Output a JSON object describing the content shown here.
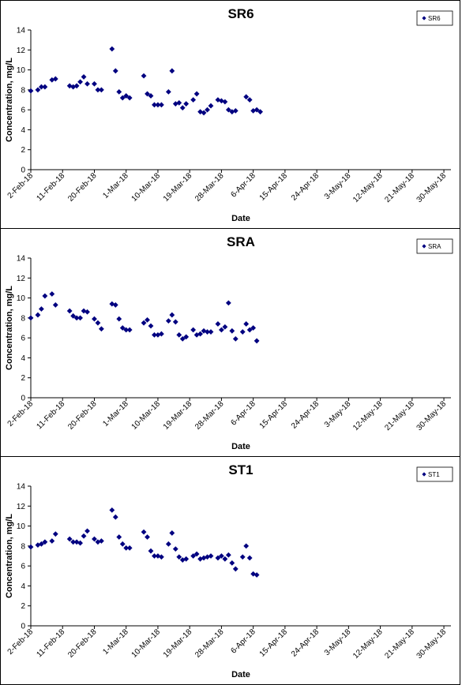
{
  "chart_data": [
    {
      "type": "scatter",
      "title": "SR6",
      "xlabel": "Date",
      "ylabel": "Concentration, mg/L",
      "ylim": [
        0,
        14
      ],
      "yticks": [
        0,
        2,
        4,
        6,
        8,
        10,
        12,
        14
      ],
      "xlim": [
        "2018-02-02",
        "2018-06-01"
      ],
      "xtick_labels": [
        "2-Feb-18",
        "11-Feb-18",
        "20-Feb-18",
        "1-Mar-18",
        "10-Mar-18",
        "19-Mar-18",
        "28-Mar-18",
        "6-Apr-18",
        "15-Apr-18",
        "24-Apr-18",
        "3-May-18",
        "12-May-18",
        "21-May-18",
        "30-May-18"
      ],
      "grid": false,
      "legend": "top-right",
      "color": "#000080",
      "series": [
        {
          "name": "SR6",
          "points": [
            [
              "2018-02-02",
              7.9
            ],
            [
              "2018-02-04",
              8.0
            ],
            [
              "2018-02-05",
              8.3
            ],
            [
              "2018-02-06",
              8.3
            ],
            [
              "2018-02-08",
              9.0
            ],
            [
              "2018-02-09",
              9.1
            ],
            [
              "2018-02-13",
              8.4
            ],
            [
              "2018-02-14",
              8.3
            ],
            [
              "2018-02-15",
              8.4
            ],
            [
              "2018-02-16",
              8.8
            ],
            [
              "2018-02-17",
              9.3
            ],
            [
              "2018-02-18",
              8.6
            ],
            [
              "2018-02-20",
              8.6
            ],
            [
              "2018-02-21",
              8.0
            ],
            [
              "2018-02-22",
              8.0
            ],
            [
              "2018-02-25",
              12.1
            ],
            [
              "2018-02-26",
              9.9
            ],
            [
              "2018-02-27",
              7.8
            ],
            [
              "2018-02-28",
              7.2
            ],
            [
              "2018-03-01",
              7.4
            ],
            [
              "2018-03-02",
              7.2
            ],
            [
              "2018-03-06",
              9.4
            ],
            [
              "2018-03-07",
              7.6
            ],
            [
              "2018-03-08",
              7.4
            ],
            [
              "2018-03-09",
              6.5
            ],
            [
              "2018-03-10",
              6.5
            ],
            [
              "2018-03-11",
              6.5
            ],
            [
              "2018-03-13",
              7.8
            ],
            [
              "2018-03-14",
              9.9
            ],
            [
              "2018-03-15",
              6.6
            ],
            [
              "2018-03-16",
              6.7
            ],
            [
              "2018-03-17",
              6.2
            ],
            [
              "2018-03-18",
              6.6
            ],
            [
              "2018-03-20",
              7.0
            ],
            [
              "2018-03-21",
              7.6
            ],
            [
              "2018-03-22",
              5.8
            ],
            [
              "2018-03-23",
              5.7
            ],
            [
              "2018-03-24",
              6.0
            ],
            [
              "2018-03-25",
              6.4
            ],
            [
              "2018-03-27",
              7.0
            ],
            [
              "2018-03-28",
              6.9
            ],
            [
              "2018-03-29",
              6.8
            ],
            [
              "2018-03-30",
              6.0
            ],
            [
              "2018-03-31",
              5.8
            ],
            [
              "2018-04-01",
              5.9
            ],
            [
              "2018-04-04",
              7.3
            ],
            [
              "2018-04-05",
              7.0
            ],
            [
              "2018-04-06",
              5.9
            ],
            [
              "2018-04-07",
              6.0
            ],
            [
              "2018-04-08",
              5.8
            ]
          ]
        }
      ]
    },
    {
      "type": "scatter",
      "title": "SRA",
      "xlabel": "Date",
      "ylabel": "Concentration, mg/L",
      "ylim": [
        0,
        14
      ],
      "yticks": [
        0,
        2,
        4,
        6,
        8,
        10,
        12,
        14
      ],
      "xlim": [
        "2018-02-02",
        "2018-06-01"
      ],
      "xtick_labels": [
        "2-Feb-18",
        "11-Feb-18",
        "20-Feb-18",
        "1-Mar-18",
        "10-Mar-18",
        "19-Mar-18",
        "28-Mar-18",
        "6-Apr-18",
        "15-Apr-18",
        "24-Apr-18",
        "3-May-18",
        "12-May-18",
        "21-May-18",
        "30-May-18"
      ],
      "grid": false,
      "legend": "top-right",
      "color": "#000080",
      "series": [
        {
          "name": "SRA",
          "points": [
            [
              "2018-02-02",
              8.0
            ],
            [
              "2018-02-04",
              8.3
            ],
            [
              "2018-02-05",
              8.9
            ],
            [
              "2018-02-06",
              10.2
            ],
            [
              "2018-02-08",
              10.4
            ],
            [
              "2018-02-09",
              9.3
            ],
            [
              "2018-02-13",
              8.7
            ],
            [
              "2018-02-14",
              8.2
            ],
            [
              "2018-02-15",
              8.0
            ],
            [
              "2018-02-16",
              8.0
            ],
            [
              "2018-02-17",
              8.7
            ],
            [
              "2018-02-18",
              8.6
            ],
            [
              "2018-02-20",
              7.9
            ],
            [
              "2018-02-21",
              7.5
            ],
            [
              "2018-02-22",
              6.9
            ],
            [
              "2018-02-25",
              9.4
            ],
            [
              "2018-02-26",
              9.3
            ],
            [
              "2018-02-27",
              7.9
            ],
            [
              "2018-02-28",
              7.0
            ],
            [
              "2018-03-01",
              6.8
            ],
            [
              "2018-03-02",
              6.8
            ],
            [
              "2018-03-06",
              7.5
            ],
            [
              "2018-03-07",
              7.8
            ],
            [
              "2018-03-08",
              7.2
            ],
            [
              "2018-03-09",
              6.3
            ],
            [
              "2018-03-10",
              6.3
            ],
            [
              "2018-03-11",
              6.4
            ],
            [
              "2018-03-13",
              7.7
            ],
            [
              "2018-03-14",
              8.3
            ],
            [
              "2018-03-15",
              7.6
            ],
            [
              "2018-03-16",
              6.3
            ],
            [
              "2018-03-17",
              5.9
            ],
            [
              "2018-03-18",
              6.1
            ],
            [
              "2018-03-20",
              6.8
            ],
            [
              "2018-03-21",
              6.3
            ],
            [
              "2018-03-22",
              6.4
            ],
            [
              "2018-03-23",
              6.7
            ],
            [
              "2018-03-24",
              6.6
            ],
            [
              "2018-03-25",
              6.6
            ],
            [
              "2018-03-27",
              7.4
            ],
            [
              "2018-03-28",
              6.8
            ],
            [
              "2018-03-29",
              7.1
            ],
            [
              "2018-03-30",
              9.5
            ],
            [
              "2018-03-31",
              6.7
            ],
            [
              "2018-04-01",
              5.9
            ],
            [
              "2018-04-03",
              6.6
            ],
            [
              "2018-04-04",
              7.4
            ],
            [
              "2018-04-05",
              6.8
            ],
            [
              "2018-04-06",
              7.0
            ],
            [
              "2018-04-07",
              5.7
            ]
          ]
        }
      ]
    },
    {
      "type": "scatter",
      "title": "ST1",
      "xlabel": "Date",
      "ylabel": "Concentration, mg/L",
      "ylim": [
        0,
        14
      ],
      "yticks": [
        0,
        2,
        4,
        6,
        8,
        10,
        12,
        14
      ],
      "xlim": [
        "2018-02-02",
        "2018-06-01"
      ],
      "xtick_labels": [
        "2-Feb-18",
        "11-Feb-18",
        "20-Feb-18",
        "1-Mar-18",
        "10-Mar-18",
        "19-Mar-18",
        "28-Mar-18",
        "6-Apr-18",
        "15-Apr-18",
        "24-Apr-18",
        "3-May-18",
        "12-May-18",
        "21-May-18",
        "30-May-18"
      ],
      "grid": false,
      "legend": "top-right",
      "color": "#000080",
      "series": [
        {
          "name": "ST1",
          "points": [
            [
              "2018-02-02",
              7.9
            ],
            [
              "2018-02-04",
              8.1
            ],
            [
              "2018-02-05",
              8.2
            ],
            [
              "2018-02-06",
              8.4
            ],
            [
              "2018-02-08",
              8.5
            ],
            [
              "2018-02-09",
              9.2
            ],
            [
              "2018-02-13",
              8.7
            ],
            [
              "2018-02-14",
              8.4
            ],
            [
              "2018-02-15",
              8.4
            ],
            [
              "2018-02-16",
              8.3
            ],
            [
              "2018-02-17",
              9.0
            ],
            [
              "2018-02-18",
              9.5
            ],
            [
              "2018-02-20",
              8.7
            ],
            [
              "2018-02-21",
              8.4
            ],
            [
              "2018-02-22",
              8.5
            ],
            [
              "2018-02-25",
              11.6
            ],
            [
              "2018-02-26",
              10.9
            ],
            [
              "2018-02-27",
              8.9
            ],
            [
              "2018-02-28",
              8.2
            ],
            [
              "2018-03-01",
              7.8
            ],
            [
              "2018-03-02",
              7.8
            ],
            [
              "2018-03-06",
              9.4
            ],
            [
              "2018-03-07",
              8.9
            ],
            [
              "2018-03-08",
              7.5
            ],
            [
              "2018-03-09",
              7.0
            ],
            [
              "2018-03-10",
              7.0
            ],
            [
              "2018-03-11",
              6.9
            ],
            [
              "2018-03-13",
              8.2
            ],
            [
              "2018-03-14",
              9.3
            ],
            [
              "2018-03-15",
              7.7
            ],
            [
              "2018-03-16",
              6.9
            ],
            [
              "2018-03-17",
              6.6
            ],
            [
              "2018-03-18",
              6.7
            ],
            [
              "2018-03-20",
              7.0
            ],
            [
              "2018-03-21",
              7.2
            ],
            [
              "2018-03-22",
              6.7
            ],
            [
              "2018-03-23",
              6.8
            ],
            [
              "2018-03-24",
              6.9
            ],
            [
              "2018-03-25",
              7.0
            ],
            [
              "2018-03-27",
              6.8
            ],
            [
              "2018-03-28",
              7.0
            ],
            [
              "2018-03-29",
              6.7
            ],
            [
              "2018-03-30",
              7.1
            ],
            [
              "2018-03-31",
              6.3
            ],
            [
              "2018-04-01",
              5.7
            ],
            [
              "2018-04-03",
              6.9
            ],
            [
              "2018-04-04",
              8.0
            ],
            [
              "2018-04-05",
              6.8
            ],
            [
              "2018-04-06",
              5.2
            ],
            [
              "2018-04-07",
              5.1
            ]
          ]
        }
      ]
    }
  ]
}
